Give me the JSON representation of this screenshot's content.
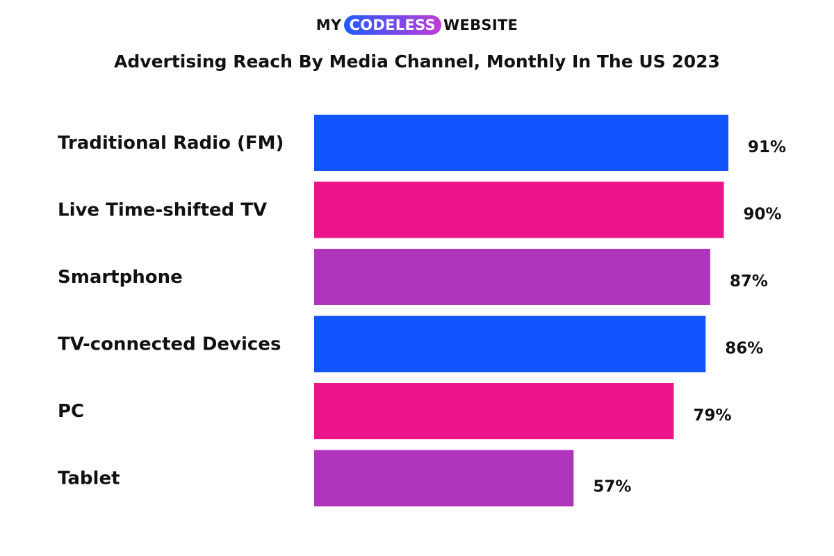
{
  "logo": {
    "left": "MY",
    "middle": "CODELESS",
    "right": "WEBSITE"
  },
  "colors": {
    "logo_pill_start": "#1f5cff",
    "logo_pill_end": "#c13bd6",
    "blue": "#1155ff",
    "pink": "#ec158c",
    "purple": "#ae34bc"
  },
  "chart_data": {
    "type": "bar",
    "orientation": "horizontal",
    "title": "Advertising Reach By Media Channel, Monthly In The US 2023",
    "categories": [
      "Traditional Radio (FM)",
      "Live Time-shifted TV",
      "Smartphone",
      "TV-connected Devices",
      "PC",
      "Tablet"
    ],
    "values": [
      91,
      90,
      87,
      86,
      79,
      57
    ],
    "value_labels": [
      "91%",
      "90%",
      "87%",
      "86%",
      "79%",
      "57%"
    ],
    "bar_colors": [
      "#1155ff",
      "#ec158c",
      "#ae34bc",
      "#1155ff",
      "#ec158c",
      "#ae34bc"
    ],
    "xlim": [
      0,
      100
    ],
    "grid": false,
    "legend": "none"
  }
}
